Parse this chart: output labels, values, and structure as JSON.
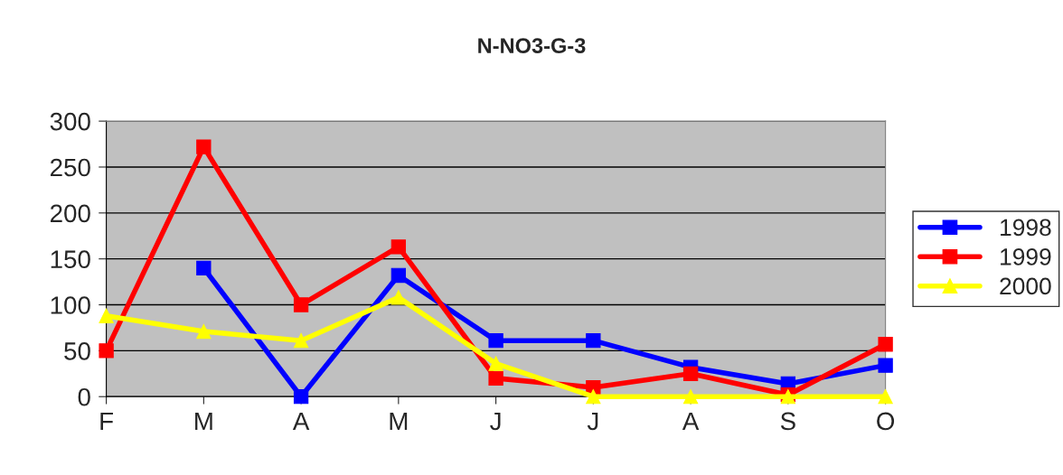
{
  "chart_data": {
    "type": "line",
    "title": "N-NO3-G-3",
    "categories": [
      "F",
      "M",
      "A",
      "M",
      "J",
      "J",
      "A",
      "S",
      "O"
    ],
    "series": [
      {
        "name": "1998",
        "color": "#0000ff",
        "marker": "square",
        "values": [
          null,
          140,
          0,
          132,
          61,
          61,
          32,
          14,
          34
        ]
      },
      {
        "name": "1999",
        "color": "#ff0000",
        "marker": "square",
        "values": [
          50,
          272,
          100,
          163,
          20,
          10,
          25,
          2,
          57
        ]
      },
      {
        "name": "2000",
        "color": "#ffff00",
        "marker": "triangle",
        "values": [
          88,
          71,
          61,
          108,
          36,
          0,
          0,
          0,
          0
        ]
      }
    ],
    "ylim": [
      0,
      300
    ],
    "yticks": [
      0,
      50,
      100,
      150,
      200,
      250,
      300
    ],
    "grid": "y",
    "legend": "right"
  }
}
